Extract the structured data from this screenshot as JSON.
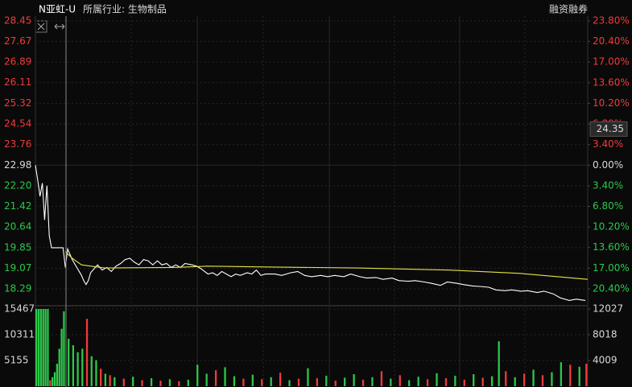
{
  "chart_data": [
    {
      "type": "line",
      "title": "N亚虹-U",
      "subtitle": "所属行业: 生物制品",
      "annotations": [
        "融资融券"
      ],
      "cursor_value": 24.35,
      "xlim": [
        0,
        240
      ],
      "ylim": [
        17.71,
        28.45
      ],
      "y2lim": [
        -22.93,
        23.8
      ],
      "up_color": "#f23a3a",
      "down_color": "#2bc94a",
      "flat_color": "#d8d8d8",
      "grid": true,
      "yticks": [
        {
          "value": 28.45,
          "label": "28.45"
        },
        {
          "value": 27.67,
          "label": "27.67"
        },
        {
          "value": 26.89,
          "label": "26.89"
        },
        {
          "value": 26.11,
          "label": "26.11"
        },
        {
          "value": 25.32,
          "label": "25.32"
        },
        {
          "value": 24.54,
          "label": "24.54"
        },
        {
          "value": 23.76,
          "label": "23.76"
        },
        {
          "value": 22.98,
          "label": "22.98"
        },
        {
          "value": 22.2,
          "label": "22.20"
        },
        {
          "value": 21.42,
          "label": "21.42"
        },
        {
          "value": 20.64,
          "label": "20.64"
        },
        {
          "value": 19.85,
          "label": "19.85"
        },
        {
          "value": 19.07,
          "label": "19.07"
        },
        {
          "value": 18.29,
          "label": "18.29"
        }
      ],
      "y2ticks": [
        {
          "value": 23.8,
          "label": "23.80%"
        },
        {
          "value": 20.4,
          "label": "20.40%"
        },
        {
          "value": 17,
          "label": "17.00%"
        },
        {
          "value": 13.6,
          "label": "13.60%"
        },
        {
          "value": 10.2,
          "label": "10.20%"
        },
        {
          "value": 6.8,
          "label": "6.80%"
        },
        {
          "value": 3.4,
          "label": "3.40%"
        },
        {
          "value": 0,
          "label": "0.00%"
        },
        {
          "value": -3.4,
          "label": "3.40%"
        },
        {
          "value": -6.8,
          "label": "6.80%"
        },
        {
          "value": -10.2,
          "label": "10.20%"
        },
        {
          "value": -13.6,
          "label": "13.60%"
        },
        {
          "value": -17,
          "label": "17.00%"
        },
        {
          "value": -20.4,
          "label": "20.40%"
        }
      ],
      "series": [
        {
          "color": "#ffffff",
          "x": [
            0,
            1,
            2,
            3,
            4,
            5,
            6,
            7,
            10,
            12,
            13,
            14,
            15,
            16,
            18,
            20,
            21,
            22,
            23,
            24,
            26,
            27,
            29,
            31,
            33,
            35,
            37,
            39,
            41,
            43,
            45,
            47,
            49,
            51,
            53,
            55,
            57,
            59,
            61,
            63,
            65,
            68,
            70,
            72,
            75,
            77,
            79,
            81,
            83,
            85,
            87,
            89,
            92,
            94,
            96,
            98,
            100,
            104,
            107,
            111,
            114,
            117,
            120,
            124,
            127,
            130,
            134,
            137,
            141,
            144,
            148,
            151,
            155,
            158,
            162,
            165,
            169,
            172,
            176,
            179,
            183,
            186,
            190,
            193,
            197,
            200,
            204,
            207,
            211,
            214,
            218,
            221,
            225,
            228,
            232,
            235,
            239
          ],
          "values": [
            22.98,
            22.4,
            21.8,
            22.3,
            20.9,
            22.2,
            20.3,
            19.85,
            19.85,
            19.85,
            19.1,
            19.8,
            19.6,
            19.4,
            19.1,
            18.8,
            18.6,
            18.45,
            18.6,
            18.9,
            19.1,
            19.2,
            19.0,
            19.1,
            18.95,
            19.15,
            19.25,
            19.4,
            19.45,
            19.3,
            19.2,
            19.4,
            19.35,
            19.2,
            19.35,
            19.2,
            19.25,
            19.1,
            19.2,
            19.1,
            19.25,
            19.2,
            19.15,
            19.05,
            18.85,
            18.9,
            18.8,
            18.95,
            18.85,
            18.75,
            18.85,
            18.8,
            18.9,
            18.85,
            19.0,
            18.8,
            18.85,
            18.85,
            18.8,
            18.9,
            18.95,
            18.8,
            18.75,
            18.8,
            18.75,
            18.8,
            18.75,
            18.85,
            18.75,
            18.7,
            18.72,
            18.65,
            18.7,
            18.6,
            18.58,
            18.6,
            18.55,
            18.5,
            18.42,
            18.55,
            18.5,
            18.45,
            18.4,
            18.38,
            18.35,
            18.25,
            18.22,
            18.25,
            18.2,
            18.22,
            18.15,
            18.2,
            18.1,
            17.95,
            17.85,
            17.9,
            17.85
          ]
        },
        {
          "color": "#e6e34a",
          "x": [
            13,
            16,
            20,
            30,
            60,
            75,
            100,
            140,
            180,
            210,
            240
          ],
          "values": [
            19.7,
            19.45,
            19.2,
            19.08,
            19.1,
            19.15,
            19.12,
            19.08,
            19.0,
            18.88,
            18.65
          ]
        }
      ]
    },
    {
      "type": "bar",
      "xlim": [
        0,
        240
      ],
      "ylim": [
        0,
        15467
      ],
      "yticks": [
        5155,
        10311,
        15467
      ],
      "y2lim": [
        0,
        12027
      ],
      "y2ticks": [
        4009,
        8018,
        12027
      ],
      "x": [
        0,
        1,
        2,
        3,
        4,
        5,
        6,
        7,
        8,
        9,
        10,
        11,
        12,
        14,
        16,
        18,
        20,
        22,
        24,
        26,
        28,
        30,
        32,
        34,
        38,
        42,
        46,
        50,
        54,
        58,
        62,
        66,
        70,
        74,
        78,
        82,
        86,
        90,
        94,
        98,
        102,
        106,
        110,
        114,
        118,
        122,
        126,
        130,
        134,
        138,
        142,
        146,
        150,
        154,
        158,
        162,
        166,
        170,
        174,
        178,
        182,
        186,
        190,
        194,
        198,
        201,
        204,
        208,
        212,
        216,
        220,
        224,
        228,
        232,
        236,
        239
      ],
      "values": [
        15467,
        15467,
        15467,
        15467,
        15467,
        15467,
        1200,
        1800,
        2800,
        4500,
        7500,
        11500,
        15000,
        9500,
        8200,
        6800,
        7500,
        13500,
        6000,
        5200,
        3500,
        2500,
        2200,
        1800,
        1500,
        1900,
        1200,
        1600,
        1100,
        1400,
        1000,
        1300,
        4300,
        2500,
        3200,
        3800,
        2000,
        1500,
        2300,
        1400,
        1800,
        2700,
        1200,
        1500,
        3600,
        1600,
        2100,
        1100,
        1700,
        2400,
        1300,
        1800,
        3000,
        1500,
        2200,
        1200,
        1900,
        1400,
        2600,
        1600,
        2100,
        1300,
        2400,
        1700,
        2000,
        9000,
        3000,
        1800,
        2500,
        3300,
        2200,
        2800,
        4800,
        4300,
        3900,
        4500
      ],
      "colors": [
        "#2bc94a",
        "#2bc94a",
        "#2bc94a",
        "#2bc94a",
        "#2bc94a",
        "#2bc94a",
        "#f23a3a",
        "#2bc94a",
        "#2bc94a",
        "#2bc94a",
        "#2bc94a",
        "#2bc94a",
        "#2bc94a",
        "#2bc94a",
        "#2bc94a",
        "#2bc94a",
        "#2bc94a",
        "#f23a3a",
        "#2bc94a",
        "#2bc94a",
        "#f23a3a",
        "#2bc94a",
        "#f23a3a",
        "#2bc94a",
        "#f23a3a",
        "#2bc94a",
        "#f23a3a",
        "#2bc94a",
        "#f23a3a",
        "#2bc94a",
        "#f23a3a",
        "#2bc94a",
        "#2bc94a",
        "#2bc94a",
        "#f23a3a",
        "#2bc94a",
        "#2bc94a",
        "#f23a3a",
        "#2bc94a",
        "#f23a3a",
        "#2bc94a",
        "#f23a3a",
        "#2bc94a",
        "#f23a3a",
        "#2bc94a",
        "#f23a3a",
        "#2bc94a",
        "#f23a3a",
        "#2bc94a",
        "#2bc94a",
        "#f23a3a",
        "#2bc94a",
        "#f23a3a",
        "#2bc94a",
        "#f23a3a",
        "#2bc94a",
        "#2bc94a",
        "#f23a3a",
        "#2bc94a",
        "#f23a3a",
        "#2bc94a",
        "#f23a3a",
        "#2bc94a",
        "#f23a3a",
        "#2bc94a",
        "#2bc94a",
        "#f23a3a",
        "#2bc94a",
        "#f23a3a",
        "#2bc94a",
        "#f23a3a",
        "#2bc94a",
        "#2bc94a",
        "#f23a3a",
        "#2bc94a",
        "#f23a3a"
      ]
    }
  ]
}
